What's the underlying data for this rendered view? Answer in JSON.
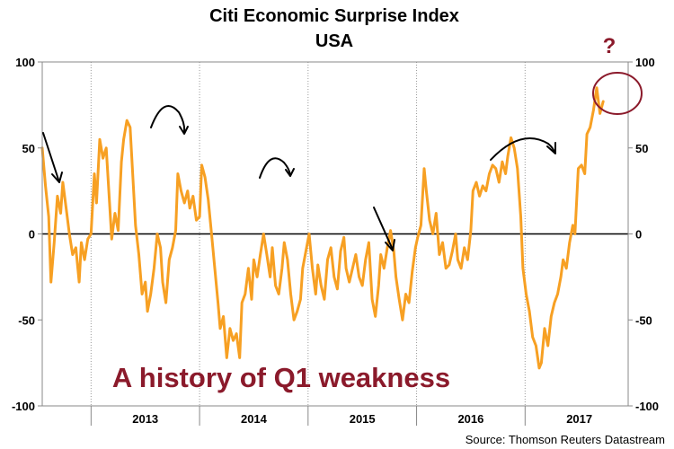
{
  "chart_data": {
    "type": "line",
    "title": "Citi Economic Surprise Index",
    "subtitle": "USA",
    "series_name": "Citi Economic Surprise Index USA",
    "series_color": "#f7a023",
    "ylim": [
      -100,
      100
    ],
    "y_ticks": [
      -100,
      -50,
      0,
      50,
      100
    ],
    "y_tick_labels": [
      "-100",
      "-50",
      "0",
      "50",
      "100"
    ],
    "x_range": [
      2012.55,
      2017.95
    ],
    "x_year_boundaries": [
      2013,
      2014,
      2015,
      2016,
      2017
    ],
    "x_tick_labels": [
      {
        "label": "2013",
        "x": 2013.5
      },
      {
        "label": "2014",
        "x": 2014.5
      },
      {
        "label": "2015",
        "x": 2015.5
      },
      {
        "label": "2016",
        "x": 2016.5
      },
      {
        "label": "2017",
        "x": 2017.5
      }
    ],
    "grid": "vertical dotted at year boundaries",
    "points": [
      [
        2012.55,
        50
      ],
      [
        2012.58,
        28
      ],
      [
        2012.61,
        10
      ],
      [
        2012.63,
        -28
      ],
      [
        2012.66,
        -5
      ],
      [
        2012.69,
        22
      ],
      [
        2012.72,
        12
      ],
      [
        2012.74,
        30
      ],
      [
        2012.77,
        15
      ],
      [
        2012.8,
        0
      ],
      [
        2012.83,
        -12
      ],
      [
        2012.86,
        -8
      ],
      [
        2012.89,
        -28
      ],
      [
        2012.91,
        -5
      ],
      [
        2012.94,
        -15
      ],
      [
        2012.97,
        -3
      ],
      [
        2013.0,
        0
      ],
      [
        2013.03,
        35
      ],
      [
        2013.05,
        18
      ],
      [
        2013.08,
        55
      ],
      [
        2013.11,
        44
      ],
      [
        2013.14,
        50
      ],
      [
        2013.17,
        18
      ],
      [
        2013.19,
        -3
      ],
      [
        2013.22,
        12
      ],
      [
        2013.25,
        2
      ],
      [
        2013.28,
        42
      ],
      [
        2013.3,
        55
      ],
      [
        2013.33,
        66
      ],
      [
        2013.36,
        62
      ],
      [
        2013.39,
        28
      ],
      [
        2013.41,
        5
      ],
      [
        2013.44,
        -12
      ],
      [
        2013.47,
        -35
      ],
      [
        2013.5,
        -28
      ],
      [
        2013.52,
        -45
      ],
      [
        2013.55,
        -35
      ],
      [
        2013.58,
        -20
      ],
      [
        2013.61,
        0
      ],
      [
        2013.64,
        -8
      ],
      [
        2013.66,
        -28
      ],
      [
        2013.69,
        -40
      ],
      [
        2013.72,
        -15
      ],
      [
        2013.75,
        -8
      ],
      [
        2013.78,
        2
      ],
      [
        2013.8,
        35
      ],
      [
        2013.83,
        25
      ],
      [
        2013.86,
        18
      ],
      [
        2013.89,
        25
      ],
      [
        2013.91,
        15
      ],
      [
        2013.94,
        22
      ],
      [
        2013.97,
        8
      ],
      [
        2014.0,
        10
      ],
      [
        2014.02,
        40
      ],
      [
        2014.05,
        33
      ],
      [
        2014.08,
        20
      ],
      [
        2014.11,
        0
      ],
      [
        2014.14,
        -20
      ],
      [
        2014.17,
        -40
      ],
      [
        2014.19,
        -55
      ],
      [
        2014.22,
        -48
      ],
      [
        2014.25,
        -72
      ],
      [
        2014.28,
        -55
      ],
      [
        2014.31,
        -62
      ],
      [
        2014.34,
        -58
      ],
      [
        2014.37,
        -72
      ],
      [
        2014.39,
        -40
      ],
      [
        2014.42,
        -35
      ],
      [
        2014.45,
        -20
      ],
      [
        2014.48,
        -38
      ],
      [
        2014.5,
        -15
      ],
      [
        2014.53,
        -25
      ],
      [
        2014.56,
        -12
      ],
      [
        2014.59,
        0
      ],
      [
        2014.62,
        -12
      ],
      [
        2014.65,
        -25
      ],
      [
        2014.67,
        -8
      ],
      [
        2014.7,
        -30
      ],
      [
        2014.73,
        -35
      ],
      [
        2014.76,
        -20
      ],
      [
        2014.78,
        -5
      ],
      [
        2014.81,
        -15
      ],
      [
        2014.84,
        -35
      ],
      [
        2014.87,
        -50
      ],
      [
        2014.9,
        -45
      ],
      [
        2014.93,
        -38
      ],
      [
        2014.95,
        -20
      ],
      [
        2014.98,
        -10
      ],
      [
        2015.01,
        0
      ],
      [
        2015.04,
        -20
      ],
      [
        2015.07,
        -35
      ],
      [
        2015.09,
        -18
      ],
      [
        2015.12,
        -30
      ],
      [
        2015.15,
        -38
      ],
      [
        2015.18,
        -15
      ],
      [
        2015.21,
        -8
      ],
      [
        2015.24,
        -25
      ],
      [
        2015.27,
        -32
      ],
      [
        2015.3,
        -10
      ],
      [
        2015.33,
        -2
      ],
      [
        2015.35,
        -20
      ],
      [
        2015.38,
        -28
      ],
      [
        2015.41,
        -20
      ],
      [
        2015.44,
        -12
      ],
      [
        2015.47,
        -25
      ],
      [
        2015.5,
        -30
      ],
      [
        2015.53,
        -15
      ],
      [
        2015.56,
        -5
      ],
      [
        2015.59,
        -38
      ],
      [
        2015.62,
        -48
      ],
      [
        2015.65,
        -30
      ],
      [
        2015.67,
        -12
      ],
      [
        2015.7,
        -20
      ],
      [
        2015.73,
        -8
      ],
      [
        2015.76,
        2
      ],
      [
        2015.79,
        -10
      ],
      [
        2015.81,
        -25
      ],
      [
        2015.84,
        -38
      ],
      [
        2015.87,
        -50
      ],
      [
        2015.9,
        -35
      ],
      [
        2015.93,
        -40
      ],
      [
        2015.96,
        -22
      ],
      [
        2015.99,
        -8
      ],
      [
        2016.01,
        -2
      ],
      [
        2016.04,
        5
      ],
      [
        2016.07,
        38
      ],
      [
        2016.09,
        25
      ],
      [
        2016.12,
        8
      ],
      [
        2016.15,
        0
      ],
      [
        2016.18,
        12
      ],
      [
        2016.21,
        -12
      ],
      [
        2016.24,
        -5
      ],
      [
        2016.27,
        -20
      ],
      [
        2016.3,
        -18
      ],
      [
        2016.33,
        -10
      ],
      [
        2016.36,
        0
      ],
      [
        2016.38,
        -15
      ],
      [
        2016.41,
        -20
      ],
      [
        2016.44,
        -8
      ],
      [
        2016.47,
        -15
      ],
      [
        2016.5,
        2
      ],
      [
        2016.52,
        25
      ],
      [
        2016.55,
        30
      ],
      [
        2016.58,
        22
      ],
      [
        2016.61,
        28
      ],
      [
        2016.64,
        25
      ],
      [
        2016.67,
        35
      ],
      [
        2016.7,
        40
      ],
      [
        2016.73,
        38
      ],
      [
        2016.76,
        30
      ],
      [
        2016.79,
        42
      ],
      [
        2016.82,
        35
      ],
      [
        2016.84,
        45
      ],
      [
        2016.87,
        56
      ],
      [
        2016.9,
        50
      ],
      [
        2016.93,
        38
      ],
      [
        2016.96,
        10
      ],
      [
        2016.98,
        -20
      ],
      [
        2017.01,
        -35
      ],
      [
        2017.04,
        -45
      ],
      [
        2017.07,
        -60
      ],
      [
        2017.1,
        -65
      ],
      [
        2017.13,
        -78
      ],
      [
        2017.15,
        -75
      ],
      [
        2017.18,
        -55
      ],
      [
        2017.21,
        -65
      ],
      [
        2017.24,
        -48
      ],
      [
        2017.27,
        -40
      ],
      [
        2017.3,
        -35
      ],
      [
        2017.33,
        -25
      ],
      [
        2017.35,
        -15
      ],
      [
        2017.38,
        -20
      ],
      [
        2017.41,
        -5
      ],
      [
        2017.44,
        5
      ],
      [
        2017.46,
        0
      ],
      [
        2017.49,
        38
      ],
      [
        2017.52,
        40
      ],
      [
        2017.55,
        35
      ],
      [
        2017.57,
        58
      ],
      [
        2017.6,
        62
      ],
      [
        2017.63,
        72
      ],
      [
        2017.66,
        85
      ],
      [
        2017.69,
        70
      ],
      [
        2017.72,
        77
      ]
    ],
    "annotations": [
      {
        "text": "A history of Q1 weakness",
        "color": "#8b1a2b"
      },
      {
        "text": "?",
        "color": "#8b1a2b",
        "note": "circled recent peak"
      }
    ],
    "source": "Source: Thomson Reuters Datastream"
  }
}
